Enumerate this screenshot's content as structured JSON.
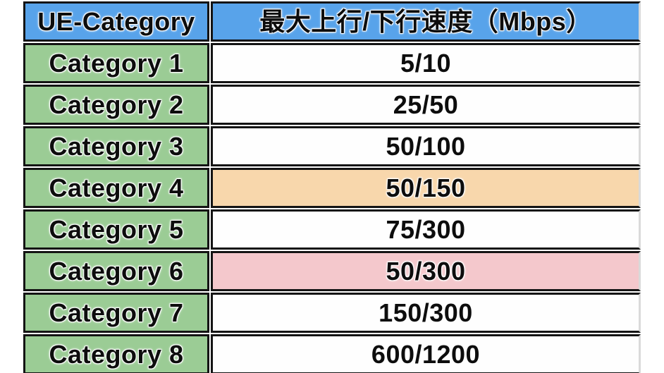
{
  "colors": {
    "header_bg": "#58a3ea",
    "category_bg": "#9bcc95",
    "value_bg": "#fefefe",
    "highlight_orange": "#f8d7ac",
    "highlight_pink": "#f4c8cc",
    "border": "#141414",
    "text": "#0d0d0d"
  },
  "chart_data": {
    "type": "table",
    "columns": [
      "UE-Category",
      "最大上行/下行速度（Mbps）"
    ],
    "rows": [
      {
        "category": "Category 1",
        "speed": "5/10",
        "highlight": "none"
      },
      {
        "category": "Category 2",
        "speed": "25/50",
        "highlight": "none"
      },
      {
        "category": "Category 3",
        "speed": "50/100",
        "highlight": "none"
      },
      {
        "category": "Category 4",
        "speed": "50/150",
        "highlight": "orange"
      },
      {
        "category": "Category 5",
        "speed": "75/300",
        "highlight": "none"
      },
      {
        "category": "Category 6",
        "speed": "50/300",
        "highlight": "pink"
      },
      {
        "category": "Category 7",
        "speed": "150/300",
        "highlight": "none"
      },
      {
        "category": "Category 8",
        "speed": "600/1200",
        "highlight": "none"
      }
    ]
  }
}
